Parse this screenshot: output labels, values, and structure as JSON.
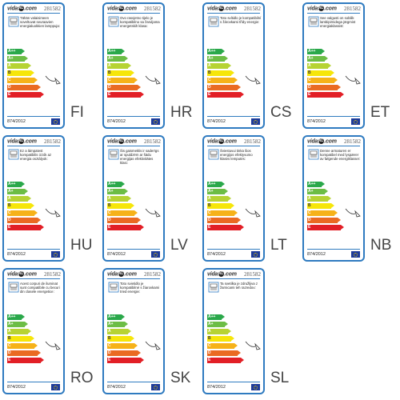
{
  "logo": "vidaXL",
  "logo_suffix": ".com",
  "product_code": "281582",
  "regulation": "874/2012",
  "bar_labels": [
    "A++",
    "A+",
    "A",
    "B",
    "C",
    "D",
    "E"
  ],
  "bar_colors": [
    "#2aa84a",
    "#6cbd45",
    "#b6d334",
    "#f6e60a",
    "#f6b219",
    "#ea6a22",
    "#e21f26"
  ],
  "labels": [
    {
      "lang": "FI",
      "text": "Tähän valaisimeen soveltuvat seuraavien energialuokkien lamppuja:"
    },
    {
      "lang": "HR",
      "text": "Ovo rasvjetno tijelo je kompatibilno sa žaruljama energetskih klasa:"
    },
    {
      "lang": "CS",
      "text": "Toto svítidlo je kompatibilní s žárovkami třídy energie:"
    },
    {
      "lang": "ET",
      "text": "See valgusti on sobilik lambipirnidega järgmist energiaklassist:"
    },
    {
      "lang": "HU",
      "text": "Ez a lámpatest kompatibilis izzók az energia osztályok:"
    },
    {
      "lang": "LV",
      "text": "Šis gaismeklis ir saderīgs ar spuldzēm ar šādu energijas efektivitātes klasi:"
    },
    {
      "lang": "LT",
      "text": "Šviestuvui tinka šios energijos efektyvumo klasės lemputės:"
    },
    {
      "lang": "NB",
      "text": "Denne armaturen er kompatibel med lyspærer av følgende energiklasser:"
    },
    {
      "lang": "RO",
      "text": "Acest corpuri de iluminat sunt compatibile cu becuri din clasele energetice:"
    },
    {
      "lang": "SK",
      "text": "Toto svietidlo je kompatibilné s žiarovkami tried energie:"
    },
    {
      "lang": "SL",
      "text": "Ta svetilka je združljiva z žarnicami teh razredov:"
    }
  ]
}
